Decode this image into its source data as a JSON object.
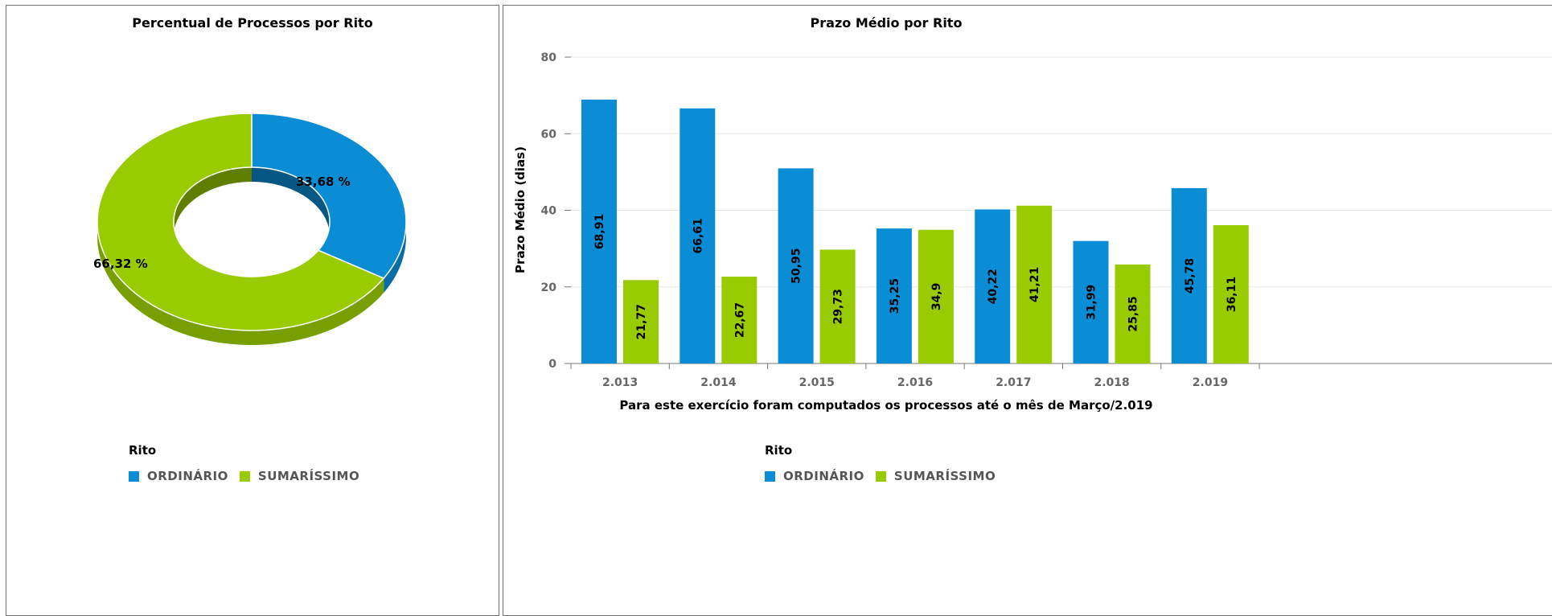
{
  "colors": {
    "ordinario": "#0a8dd4",
    "sumarissimo": "#99cc00"
  },
  "legend": {
    "title": "Rito",
    "items": [
      "ORDINÁRIO",
      "SUMARÍSSIMO"
    ]
  },
  "chart_data": [
    {
      "type": "pie",
      "title": "Percentual de Processos por Rito",
      "categories": [
        "ORDINÁRIO",
        "SUMARÍSSIMO"
      ],
      "values": [
        33.68,
        66.32
      ],
      "labels": [
        "33,68 %",
        "66,32 %"
      ],
      "legend_position": "bottom-left"
    },
    {
      "type": "bar",
      "title": "Prazo Médio por Rito",
      "categories": [
        "2.013",
        "2.014",
        "2.015",
        "2.016",
        "2.017",
        "2.018",
        "2.019"
      ],
      "series": [
        {
          "name": "ORDINÁRIO",
          "values": [
            68.91,
            66.61,
            50.95,
            35.25,
            40.22,
            31.99,
            45.78
          ],
          "labels": [
            "68,91",
            "66,61",
            "50,95",
            "35,25",
            "40,22",
            "31,99",
            "45,78"
          ]
        },
        {
          "name": "SUMARÍSSIMO",
          "values": [
            21.77,
            22.67,
            29.73,
            34.9,
            41.21,
            25.85,
            36.11
          ],
          "labels": [
            "21,77",
            "22,67",
            "29,73",
            "34,9",
            "41,21",
            "25,85",
            "36,11"
          ]
        }
      ],
      "ylabel": "Prazo Médio (dias)",
      "xlabel": "Para este exercício foram computados os processos até o mês de Março/2.019",
      "ylim": [
        0,
        80
      ],
      "yticks": [
        0,
        20,
        40,
        60,
        80
      ],
      "grid": true,
      "legend_position": "bottom"
    }
  ]
}
